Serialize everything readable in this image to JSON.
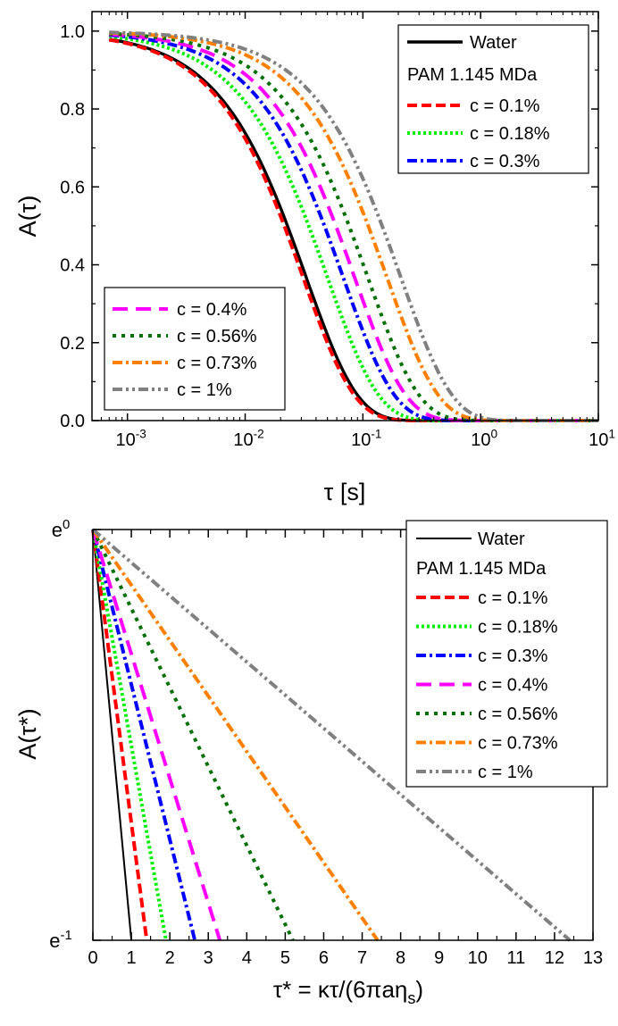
{
  "chart_data": [
    {
      "type": "line",
      "xscale": "log",
      "xlabel": "τ [s]",
      "ylabel": "A(τ)",
      "xlim": [
        0.0005,
        10
      ],
      "ylim": [
        0,
        1.05
      ],
      "x_ticks": [
        {
          "value": 0.001,
          "base": "10",
          "exp": "-3"
        },
        {
          "value": 0.01,
          "base": "10",
          "exp": "-2"
        },
        {
          "value": 0.1,
          "base": "10",
          "exp": "-1"
        },
        {
          "value": 1,
          "base": "10",
          "exp": "0"
        },
        {
          "value": 10,
          "base": "10",
          "exp": "1"
        }
      ],
      "y_ticks": [
        {
          "value": 0.0,
          "label": "0.0"
        },
        {
          "value": 0.2,
          "label": "0.2"
        },
        {
          "value": 0.4,
          "label": "0.4"
        },
        {
          "value": 0.6,
          "label": "0.6"
        },
        {
          "value": 0.8,
          "label": "0.8"
        },
        {
          "value": 1.0,
          "label": "1.0"
        }
      ],
      "legend_top": {
        "position": "top-right",
        "title": "PAM 1.145 MDa",
        "entries": [
          "Water",
          "c = 0.1%",
          "c = 0.18%",
          "c = 0.3%"
        ]
      },
      "legend_bottom": {
        "position": "lower-left",
        "entries": [
          "c = 0.4%",
          "c = 0.56%",
          "c = 0.73%",
          "c = 1%"
        ]
      },
      "series": [
        {
          "name": "Water",
          "color": "#000000",
          "style": "solid",
          "tau": 0.033
        },
        {
          "name": "c = 0.1%",
          "color": "#ff0000",
          "style": "dash",
          "tau": 0.031
        },
        {
          "name": "c = 0.18%",
          "color": "#00ee00",
          "style": "dot",
          "tau": 0.05
        },
        {
          "name": "c = 0.3%",
          "color": "#0000ff",
          "style": "dashdot",
          "tau": 0.068
        },
        {
          "name": "c = 0.4%",
          "color": "#ff00ff",
          "style": "longdash",
          "tau": 0.085
        },
        {
          "name": "c = 0.56%",
          "color": "#007000",
          "style": "shortdot",
          "tau": 0.11
        },
        {
          "name": "c = 0.73%",
          "color": "#ff8000",
          "style": "dashdot",
          "tau": 0.16
        },
        {
          "name": "c = 1%",
          "color": "#808080",
          "style": "dashdotdot",
          "tau": 0.21
        }
      ]
    },
    {
      "type": "line",
      "yscale": "log",
      "xlabel_main": "τ* = κτ/(6πaη",
      "xlabel_sub": "s",
      "xlabel_close": ")",
      "ylabel": "A(τ*)",
      "xlim": [
        0,
        13
      ],
      "ylim_labels": [
        {
          "value": 1,
          "base": "e",
          "exp": "0"
        },
        {
          "value": -1,
          "base": "e",
          "exp": "-1"
        }
      ],
      "x_ticks": [
        "0",
        "1",
        "2",
        "3",
        "4",
        "5",
        "6",
        "7",
        "8",
        "9",
        "10",
        "11",
        "12",
        "13"
      ],
      "legend": {
        "position": "top-right",
        "title": "PAM 1.145 MDa",
        "entries": [
          "Water",
          "c = 0.1%",
          "c = 0.18%",
          "c = 0.3%",
          "c = 0.4%",
          "c = 0.56%",
          "c = 0.73%",
          "c = 1%"
        ]
      },
      "series": [
        {
          "name": "Water",
          "color": "#000000",
          "style": "thin",
          "end_x": 1.0
        },
        {
          "name": "c = 0.1%",
          "color": "#ff0000",
          "style": "dash",
          "end_x": 1.4
        },
        {
          "name": "c = 0.18%",
          "color": "#00ee00",
          "style": "dot",
          "end_x": 1.9
        },
        {
          "name": "c = 0.3%",
          "color": "#0000ff",
          "style": "dashdot",
          "end_x": 2.65
        },
        {
          "name": "c = 0.4%",
          "color": "#ff00ff",
          "style": "longdash",
          "end_x": 3.3
        },
        {
          "name": "c = 0.56%",
          "color": "#007000",
          "style": "shortdot",
          "end_x": 5.2
        },
        {
          "name": "c = 0.73%",
          "color": "#ff8000",
          "style": "dashdot",
          "end_x": 7.4
        },
        {
          "name": "c = 1%",
          "color": "#808080",
          "style": "dashdotdot",
          "end_x": 12.4
        }
      ]
    }
  ]
}
